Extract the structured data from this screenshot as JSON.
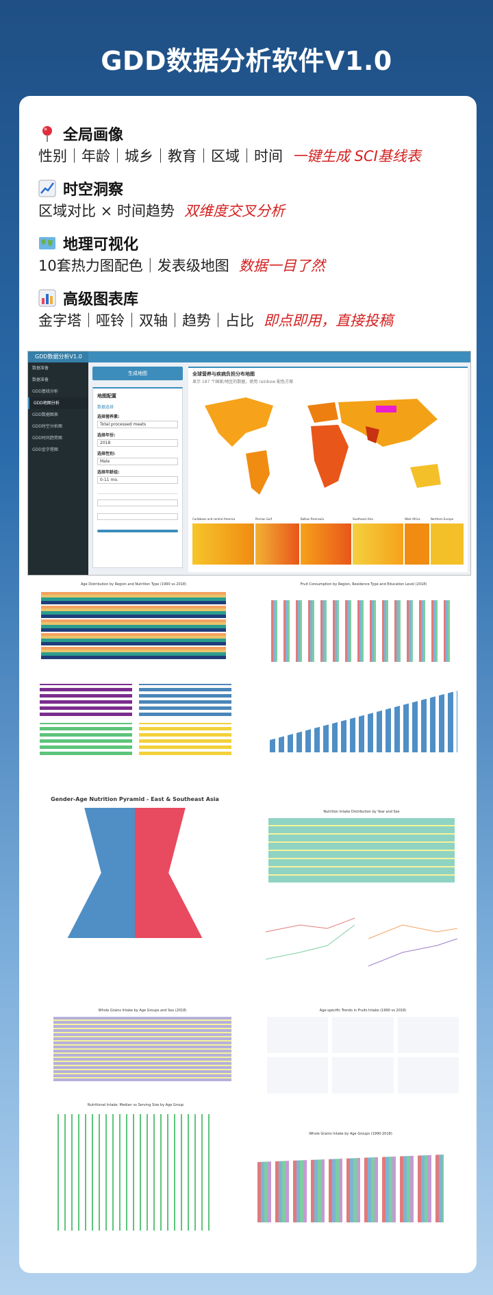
{
  "page_title": "GDD数据分析软件V1.0",
  "features": [
    {
      "icon": "pushpin-icon",
      "title": "全局画像",
      "line": "性别｜年龄｜城乡｜教育｜区域｜时间",
      "highlight": "一键生成 SCI基线表"
    },
    {
      "icon": "chart-trend-icon",
      "title": "时空洞察",
      "line": "区域对比 × 时间趋势",
      "highlight": "双维度交叉分析"
    },
    {
      "icon": "world-map-icon",
      "title": "地理可视化",
      "line": "10套热力图配色｜发表级地图",
      "highlight": "数据一目了然"
    },
    {
      "icon": "bar-chart-icon",
      "title": "高级图表库",
      "line": "金字塔｜哑铃｜双轴｜趋势｜占比",
      "highlight": "即点即用，直接投稿"
    }
  ],
  "app": {
    "brand": "GDD数据分析V1.0",
    "sidebar": [
      "数据准备",
      "数据准备",
      "GDD基线分析",
      "GDD地图分析",
      "GDD数据图表",
      "GDD时空分析图",
      "GDD时间趋势图",
      "GDD金字塔图"
    ],
    "generate_button": "生成地图",
    "config_title": "地图配置",
    "data_section": "数据选择",
    "labels": [
      "选择营养素:",
      "选择年份:",
      "选择性别:",
      "选择年龄组:"
    ],
    "values": [
      "Total processed meats",
      "2018",
      "Male",
      "0-11 mo."
    ],
    "map_title": "全球营养与疾病负担分布地图",
    "map_subtitle": "显示 187 个国家/地区的数据，使用 rainbow 配色方案",
    "region_labels": [
      "Caribbean and central America",
      "Persian Gulf",
      "Balkan Peninsula",
      "Southeast Asia",
      "West Africa",
      "Northern Europe"
    ]
  },
  "chart_titles": [
    "Age Distribution by Region and Nutrition Type (1990 vs 2018)",
    "Fruit Consumption by Region, Residence Type and Education Level (2018)",
    "Gender-Age Nutrition Pyramid - East & Southeast Asia",
    "Nutrition Intake Distribution by Year and Sex",
    "Whole Grains Intake by Age Groups and Sex (2018)",
    "Age-specific Trends in Fruits Intake (1990 vs 2018)",
    "Nutritional Intake: Median vs Serving Size by Age Group",
    "Whole Grains Intake by Age Groups (1990-2018)"
  ],
  "colors": {
    "accent": "#3c8dbc",
    "highlight": "#d42020",
    "sidebar": "#222d32"
  }
}
